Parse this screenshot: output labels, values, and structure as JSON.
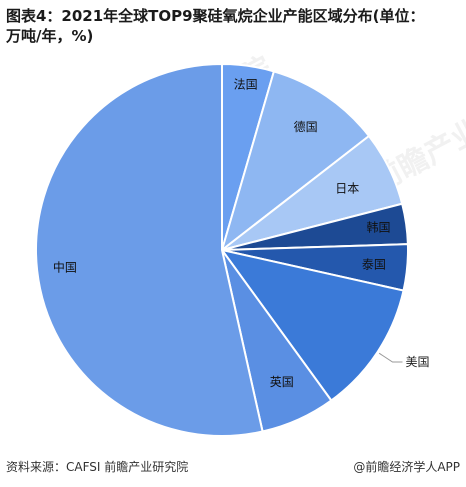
{
  "title": "图表4：2021年全球TOP9聚硅氧烷企业产能区域分布(单位：万吨/年，%)",
  "chart_data": {
    "type": "pie",
    "title": "图表4：2021年全球TOP9聚硅氧烷企业产能区域分布(单位：万吨/年，%)",
    "start_angle_deg": 0,
    "direction": "clockwise",
    "slices": [
      {
        "label": "法国",
        "value": 4.5,
        "color": "#6a9ff0"
      },
      {
        "label": "德国",
        "value": 10.0,
        "color": "#8eb7f2"
      },
      {
        "label": "日本",
        "value": 6.5,
        "color": "#a8c8f5"
      },
      {
        "label": "韩国",
        "value": 3.5,
        "color": "#1d4a94"
      },
      {
        "label": "泰国",
        "value": 4.0,
        "color": "#2458ad"
      },
      {
        "label": "美国",
        "value": 11.5,
        "color": "#3b7ad8"
      },
      {
        "label": "英国",
        "value": 6.5,
        "color": "#5a8fe3"
      },
      {
        "label": "中国",
        "value": 53.5,
        "color": "#6b9ce8"
      }
    ]
  },
  "footer": {
    "source": "资料来源：CAFSI 前瞻产业研究院",
    "brand": "@前瞻经济学人APP"
  },
  "watermark": "前瞻产业研究院"
}
